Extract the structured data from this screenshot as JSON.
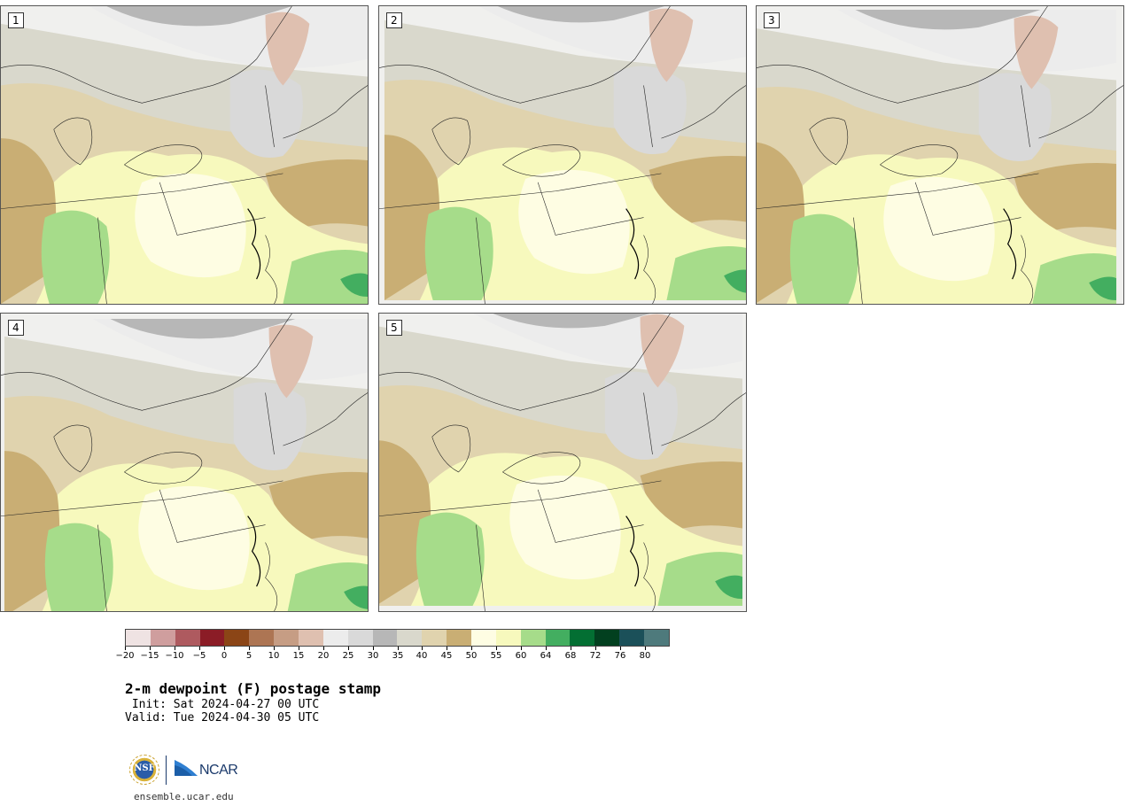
{
  "panels": [
    {
      "number": "1",
      "variant": 0
    },
    {
      "number": "2",
      "variant": 1
    },
    {
      "number": "3",
      "variant": 2
    },
    {
      "number": "4",
      "variant": 3
    },
    {
      "number": "5",
      "variant": 4
    }
  ],
  "colorbar": {
    "colors": [
      "#efe3e3",
      "#cf9e9e",
      "#ae5a5f",
      "#8b1c26",
      "#8b4516",
      "#ad7553",
      "#c69d84",
      "#dfc0b0",
      "#ececec",
      "#d9d9d9",
      "#b7b7b7",
      "#d9d8cc",
      "#e0d3ae",
      "#c9ae74",
      "#fefde3",
      "#f7f9bd",
      "#a6dc8a",
      "#43ae60",
      "#036f33",
      "#02401f",
      "#1b5059",
      "#4e7a7c"
    ],
    "tick_values": [
      "-20",
      "-15",
      "-10",
      "-5",
      "0",
      "5",
      "10",
      "15",
      "20",
      "25",
      "30",
      "35",
      "40",
      "45",
      "50",
      "55",
      "60",
      "64",
      "68",
      "72",
      "76",
      "80"
    ]
  },
  "title": "2-m dewpoint (F) postage stamp",
  "init": " Init: Sat 2024-04-27 00 UTC",
  "valid": "Valid: Tue 2024-04-30 05 UTC",
  "logos": {
    "nsf": "NSF",
    "ncar": "NCAR"
  },
  "website": "ensemble.ucar.edu"
}
